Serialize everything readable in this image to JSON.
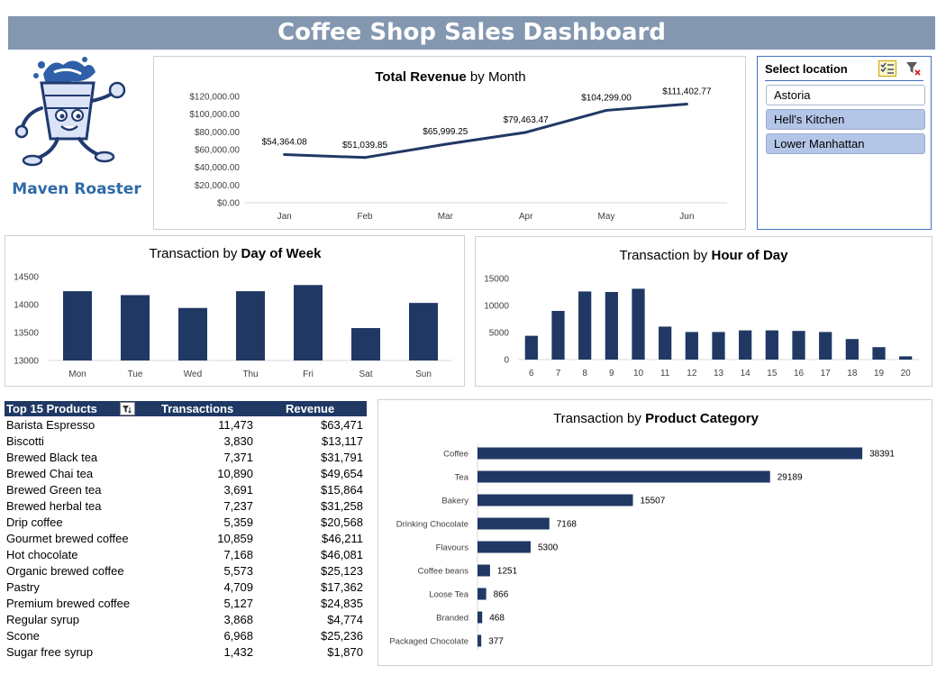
{
  "dashboard": {
    "title": "Coffee Shop Sales Dashboard"
  },
  "logo": {
    "text": "Maven Roaster"
  },
  "slicer": {
    "header": "Select location",
    "items": [
      {
        "label": "Astoria",
        "selected": false
      },
      {
        "label": "Hell's Kitchen",
        "selected": true
      },
      {
        "label": "Lower Manhattan",
        "selected": true
      }
    ]
  },
  "colors": {
    "bar": "#203864",
    "header_bg": "#8497b0",
    "selected": "#b4c6e7"
  },
  "table": {
    "headers": [
      "Top 15 Products",
      "Transactions",
      "Revenue"
    ],
    "rows": [
      [
        "Barista Espresso",
        "11,473",
        "$63,471"
      ],
      [
        "Biscotti",
        "3,830",
        "$13,117"
      ],
      [
        "Brewed Black tea",
        "7,371",
        "$31,791"
      ],
      [
        "Brewed Chai tea",
        "10,890",
        "$49,654"
      ],
      [
        "Brewed Green tea",
        "3,691",
        "$15,864"
      ],
      [
        "Brewed herbal tea",
        "7,237",
        "$31,258"
      ],
      [
        "Drip coffee",
        "5,359",
        "$20,568"
      ],
      [
        "Gourmet brewed coffee",
        "10,859",
        "$46,211"
      ],
      [
        "Hot chocolate",
        "7,168",
        "$46,081"
      ],
      [
        "Organic brewed coffee",
        "5,573",
        "$25,123"
      ],
      [
        "Pastry",
        "4,709",
        "$17,362"
      ],
      [
        "Premium brewed coffee",
        "5,127",
        "$24,835"
      ],
      [
        "Regular syrup",
        "3,868",
        "$4,774"
      ],
      [
        "Scone",
        "6,968",
        "$25,236"
      ],
      [
        "Sugar free syrup",
        "1,432",
        "$1,870"
      ]
    ]
  },
  "chart_data": [
    {
      "id": "revenue",
      "type": "line",
      "title_normal": "",
      "title_bold": "Total Revenue",
      "title_suffix": " by Month",
      "categories": [
        "Jan",
        "Feb",
        "Mar",
        "Apr",
        "May",
        "Jun"
      ],
      "values": [
        54364.08,
        51039.85,
        65999.25,
        79463.47,
        104299.0,
        111402.77
      ],
      "labels": [
        "$54,364.08",
        "$51,039.85",
        "$65,999.25",
        "$79,463.47",
        "$104,299.00",
        "$111,402.77"
      ],
      "ylim": [
        0,
        120000
      ],
      "yticks": [
        0,
        20000,
        40000,
        60000,
        80000,
        100000,
        120000
      ],
      "ytick_labels": [
        "$0.00",
        "$20,000.00",
        "$40,000.00",
        "$60,000.00",
        "$80,000.00",
        "$100,000.00",
        "$120,000.00"
      ],
      "grid": false
    },
    {
      "id": "dow",
      "type": "bar",
      "title_normal": "Transaction by ",
      "title_bold": "Day of Week",
      "title_suffix": "",
      "categories": [
        "Mon",
        "Tue",
        "Wed",
        "Thu",
        "Fri",
        "Sat",
        "Sun"
      ],
      "values": [
        14240,
        14170,
        13940,
        14240,
        14350,
        13580,
        14030
      ],
      "ylim": [
        13000,
        14500
      ],
      "yticks": [
        13000,
        13500,
        14000,
        14500
      ],
      "ytick_labels": [
        "13000",
        "13500",
        "14000",
        "14500"
      ],
      "grid": false
    },
    {
      "id": "hour",
      "type": "bar",
      "title_normal": "Transaction by ",
      "title_bold": "Hour of Day",
      "title_suffix": "",
      "categories": [
        "6",
        "7",
        "8",
        "9",
        "10",
        "11",
        "12",
        "13",
        "14",
        "15",
        "16",
        "17",
        "18",
        "19",
        "20"
      ],
      "values": [
        4400,
        9000,
        12600,
        12500,
        13100,
        6100,
        5100,
        5100,
        5400,
        5400,
        5300,
        5100,
        3800,
        2300,
        600
      ],
      "ylim": [
        0,
        15000
      ],
      "yticks": [
        0,
        5000,
        10000,
        15000
      ],
      "ytick_labels": [
        "0",
        "5000",
        "10000",
        "15000"
      ],
      "grid": false
    },
    {
      "id": "category",
      "type": "bar",
      "orientation": "horizontal",
      "title_normal": "Transaction by ",
      "title_bold": "Product Category",
      "title_suffix": "",
      "categories": [
        "Coffee",
        "Tea",
        "Bakery",
        "Drinking Chocolate",
        "Flavours",
        "Coffee beans",
        "Loose Tea",
        "Branded",
        "Packaged Chocolate"
      ],
      "values": [
        38391,
        29189,
        15507,
        7168,
        5300,
        1251,
        866,
        468,
        377
      ],
      "labels": [
        "38391",
        "29189",
        "15507",
        "7168",
        "5300",
        "1251",
        "866",
        "468",
        "377"
      ],
      "grid": false
    }
  ]
}
